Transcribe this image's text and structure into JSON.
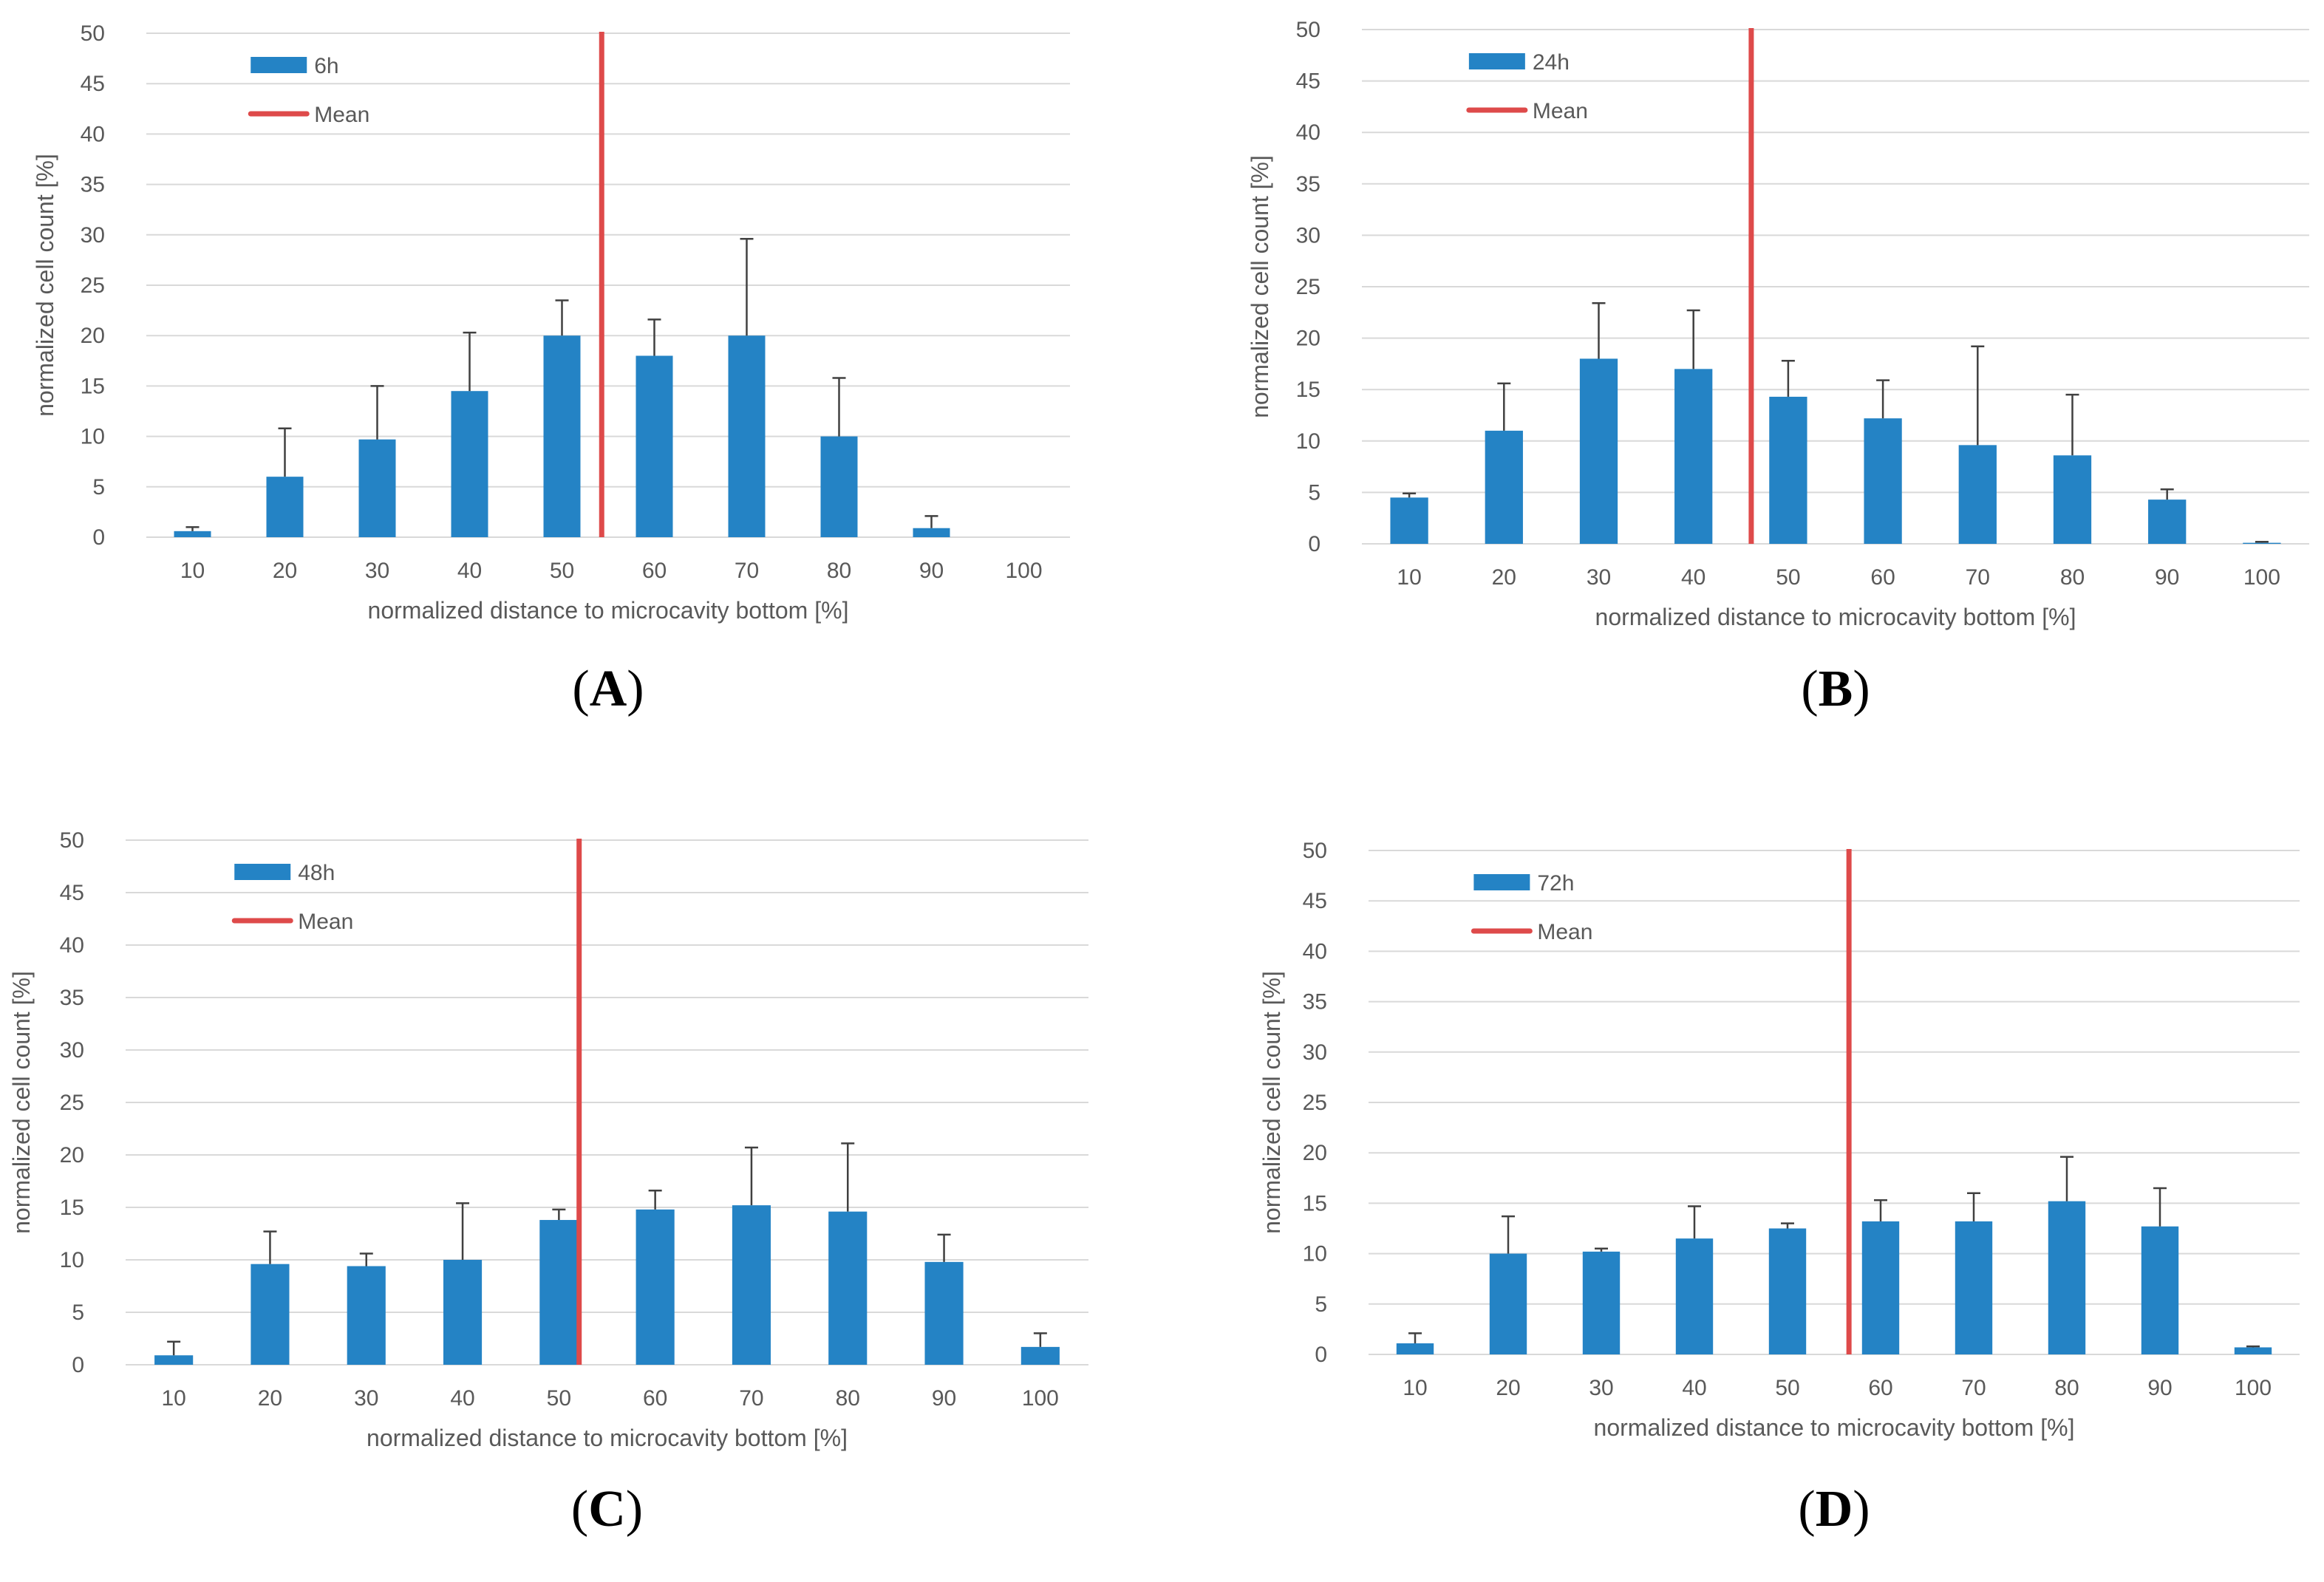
{
  "chart_data": [
    {
      "type": "bar",
      "panel_label": "A",
      "categories": [
        "10",
        "20",
        "30",
        "40",
        "50",
        "60",
        "70",
        "80",
        "90",
        "100"
      ],
      "series": [
        {
          "name": "6h",
          "values": [
            0.6,
            6,
            9.7,
            14.5,
            20,
            18,
            20,
            10,
            0.9,
            0
          ],
          "error_upper": [
            0.4,
            4.8,
            5.3,
            5.8,
            3.5,
            3.6,
            9.6,
            5.8,
            1.2,
            0
          ]
        }
      ],
      "mean_line": {
        "name": "Mean",
        "x": 54.3
      },
      "xlabel": "normalized distance to microcavity bottom [%]",
      "ylabel": "normalized cell count [%]",
      "ylim": [
        0,
        50
      ],
      "yticks": [
        "0",
        "5",
        "10",
        "15",
        "20",
        "25",
        "30",
        "35",
        "40",
        "45",
        "50"
      ],
      "grid": true,
      "legend_position": "top-left"
    },
    {
      "type": "bar",
      "panel_label": "B",
      "categories": [
        "10",
        "20",
        "30",
        "40",
        "50",
        "60",
        "70",
        "80",
        "90",
        "100"
      ],
      "series": [
        {
          "name": "24h",
          "values": [
            4.5,
            11,
            18,
            17,
            14.3,
            12.2,
            9.6,
            8.6,
            4.3,
            0.1
          ],
          "error_upper": [
            0.4,
            4.6,
            5.4,
            5.7,
            3.5,
            3.7,
            9.6,
            5.9,
            1.0,
            0.1
          ]
        }
      ],
      "mean_line": {
        "name": "Mean",
        "x": 46.1
      },
      "xlabel": "normalized distance to microcavity bottom [%]",
      "ylabel": "normalized cell count [%]",
      "ylim": [
        0,
        50
      ],
      "yticks": [
        "0",
        "5",
        "10",
        "15",
        "20",
        "25",
        "30",
        "35",
        "40",
        "45",
        "50"
      ],
      "grid": true,
      "legend_position": "top-left"
    },
    {
      "type": "bar",
      "panel_label": "C",
      "categories": [
        "10",
        "20",
        "30",
        "40",
        "50",
        "60",
        "70",
        "80",
        "90",
        "100"
      ],
      "series": [
        {
          "name": "48h",
          "values": [
            0.9,
            9.6,
            9.4,
            10,
            13.8,
            14.8,
            15.2,
            14.6,
            9.8,
            1.7
          ],
          "error_upper": [
            1.3,
            3.1,
            1.2,
            5.4,
            1.0,
            1.8,
            5.5,
            6.5,
            2.6,
            1.3
          ]
        }
      ],
      "mean_line": {
        "name": "Mean",
        "x": 52.1
      },
      "xlabel": "normalized distance to microcavity bottom [%]",
      "ylabel": "normalized cell count [%]",
      "ylim": [
        0,
        50
      ],
      "yticks": [
        "0",
        "5",
        "10",
        "15",
        "20",
        "25",
        "30",
        "35",
        "40",
        "45",
        "50"
      ],
      "grid": true,
      "legend_position": "top-left"
    },
    {
      "type": "bar",
      "panel_label": "D",
      "categories": [
        "10",
        "20",
        "30",
        "40",
        "50",
        "60",
        "70",
        "80",
        "90",
        "100"
      ],
      "series": [
        {
          "name": "72h",
          "values": [
            1.1,
            10,
            10.2,
            11.5,
            12.5,
            13.2,
            13.2,
            15.2,
            12.7,
            0.7
          ],
          "error_upper": [
            1.0,
            3.7,
            0.3,
            3.2,
            0.5,
            2.1,
            2.8,
            4.4,
            3.8,
            0.1
          ]
        }
      ],
      "mean_line": {
        "name": "Mean",
        "x": 56.6
      },
      "xlabel": "normalized distance to microcavity bottom [%]",
      "ylabel": "normalized cell count [%]",
      "ylim": [
        0,
        50
      ],
      "yticks": [
        "0",
        "5",
        "10",
        "15",
        "20",
        "25",
        "30",
        "35",
        "40",
        "45",
        "50"
      ],
      "grid": true,
      "legend_position": "top-left"
    }
  ],
  "colors": {
    "bar": "#2483c5",
    "mean_line": "#de4a4a",
    "error_bar": "#404040",
    "grid": "#d9d9d9",
    "text": "#595959"
  }
}
